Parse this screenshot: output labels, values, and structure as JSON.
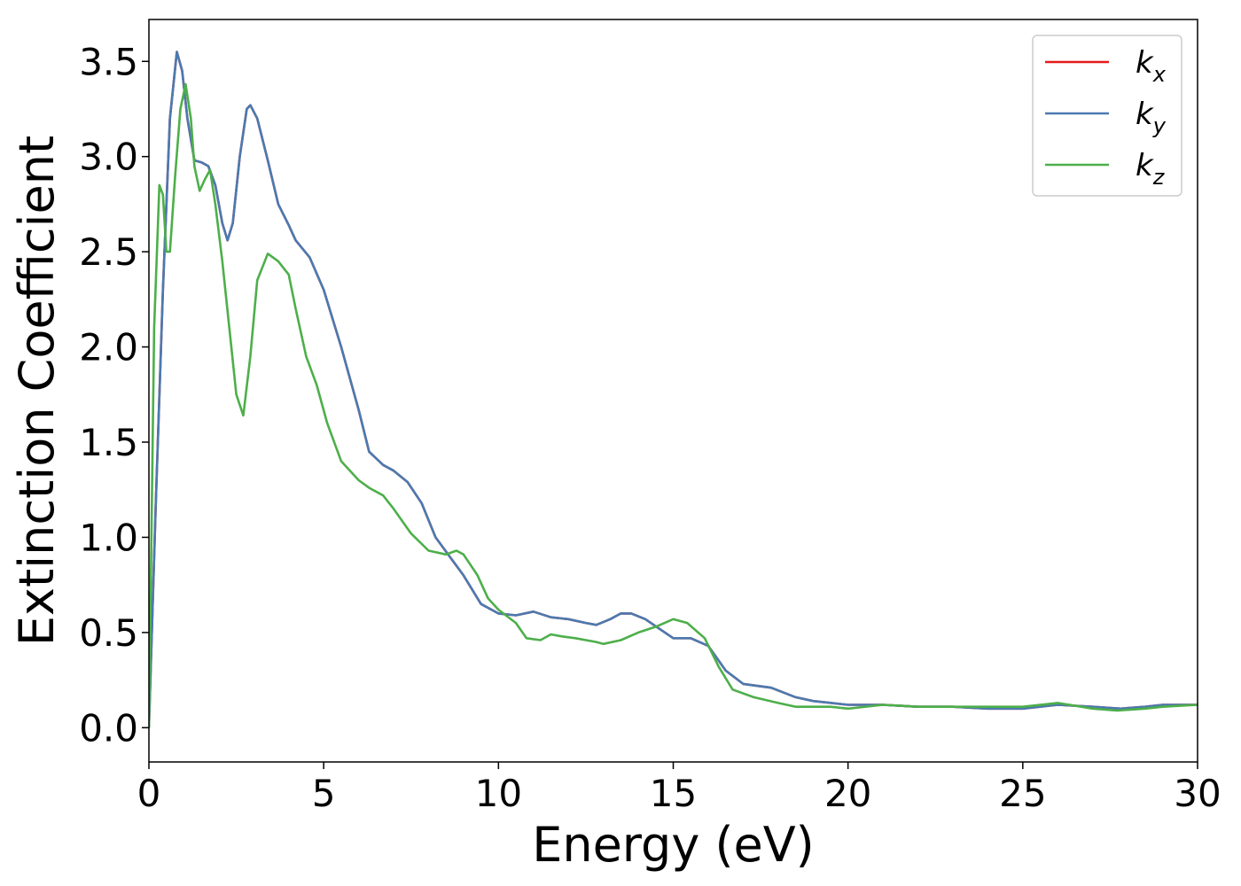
{
  "chart_data": {
    "type": "line",
    "title": "",
    "xlabel": "Energy (eV)",
    "ylabel": "Extinction Coefficient",
    "xlim": [
      0,
      30
    ],
    "ylim": [
      -0.18,
      3.72
    ],
    "xticks": [
      0,
      5,
      10,
      15,
      20,
      25,
      30
    ],
    "xtick_labels": [
      "0",
      "5",
      "10",
      "15",
      "20",
      "25",
      "30"
    ],
    "yticks": [
      0.0,
      0.5,
      1.0,
      1.5,
      2.0,
      2.5,
      3.0,
      3.5
    ],
    "ytick_labels": [
      "0.0",
      "0.5",
      "1.0",
      "1.5",
      "2.0",
      "2.5",
      "3.0",
      "3.5"
    ],
    "grid": false,
    "legend_position": "top-right",
    "series": [
      {
        "name": "k",
        "subscript": "x",
        "color": "#e41a1c",
        "points": [
          [
            0,
            0
          ],
          [
            0.2,
            1.2
          ],
          [
            0.4,
            2.3
          ],
          [
            0.6,
            3.2
          ],
          [
            0.8,
            3.55
          ],
          [
            0.95,
            3.45
          ],
          [
            1.1,
            3.2
          ],
          [
            1.3,
            2.98
          ],
          [
            1.5,
            2.97
          ],
          [
            1.7,
            2.95
          ],
          [
            1.9,
            2.85
          ],
          [
            2.1,
            2.65
          ],
          [
            2.25,
            2.56
          ],
          [
            2.4,
            2.65
          ],
          [
            2.6,
            3.0
          ],
          [
            2.8,
            3.25
          ],
          [
            2.9,
            3.27
          ],
          [
            3.1,
            3.2
          ],
          [
            3.4,
            2.98
          ],
          [
            3.7,
            2.75
          ],
          [
            4.0,
            2.64
          ],
          [
            4.2,
            2.56
          ],
          [
            4.6,
            2.47
          ],
          [
            5.0,
            2.3
          ],
          [
            5.5,
            2.0
          ],
          [
            6.0,
            1.67
          ],
          [
            6.3,
            1.45
          ],
          [
            6.7,
            1.38
          ],
          [
            7.0,
            1.35
          ],
          [
            7.4,
            1.29
          ],
          [
            7.8,
            1.18
          ],
          [
            8.2,
            1.0
          ],
          [
            8.6,
            0.9
          ],
          [
            9.0,
            0.8
          ],
          [
            9.5,
            0.65
          ],
          [
            10.0,
            0.6
          ],
          [
            10.5,
            0.59
          ],
          [
            11.0,
            0.61
          ],
          [
            11.5,
            0.58
          ],
          [
            12.0,
            0.57
          ],
          [
            12.5,
            0.55
          ],
          [
            12.8,
            0.54
          ],
          [
            13.2,
            0.57
          ],
          [
            13.5,
            0.6
          ],
          [
            13.8,
            0.6
          ],
          [
            14.2,
            0.57
          ],
          [
            14.6,
            0.52
          ],
          [
            15.0,
            0.47
          ],
          [
            15.5,
            0.47
          ],
          [
            16.0,
            0.43
          ],
          [
            16.5,
            0.3
          ],
          [
            17.0,
            0.23
          ],
          [
            17.8,
            0.21
          ],
          [
            18.5,
            0.16
          ],
          [
            19.0,
            0.14
          ],
          [
            20.0,
            0.12
          ],
          [
            21.0,
            0.12
          ],
          [
            22.0,
            0.11
          ],
          [
            23.0,
            0.11
          ],
          [
            24.0,
            0.1
          ],
          [
            25.0,
            0.1
          ],
          [
            26.0,
            0.12
          ],
          [
            27.0,
            0.11
          ],
          [
            27.8,
            0.1
          ],
          [
            28.5,
            0.11
          ],
          [
            29.0,
            0.12
          ],
          [
            30.0,
            0.12
          ]
        ]
      },
      {
        "name": "k",
        "subscript": "y",
        "color": "#4a7ab0",
        "points": [
          [
            0,
            0
          ],
          [
            0.2,
            1.2
          ],
          [
            0.4,
            2.3
          ],
          [
            0.6,
            3.2
          ],
          [
            0.8,
            3.55
          ],
          [
            0.95,
            3.45
          ],
          [
            1.1,
            3.2
          ],
          [
            1.3,
            2.98
          ],
          [
            1.5,
            2.97
          ],
          [
            1.7,
            2.95
          ],
          [
            1.9,
            2.85
          ],
          [
            2.1,
            2.65
          ],
          [
            2.25,
            2.56
          ],
          [
            2.4,
            2.65
          ],
          [
            2.6,
            3.0
          ],
          [
            2.8,
            3.25
          ],
          [
            2.9,
            3.27
          ],
          [
            3.1,
            3.2
          ],
          [
            3.4,
            2.98
          ],
          [
            3.7,
            2.75
          ],
          [
            4.0,
            2.64
          ],
          [
            4.2,
            2.56
          ],
          [
            4.6,
            2.47
          ],
          [
            5.0,
            2.3
          ],
          [
            5.5,
            2.0
          ],
          [
            6.0,
            1.67
          ],
          [
            6.3,
            1.45
          ],
          [
            6.7,
            1.38
          ],
          [
            7.0,
            1.35
          ],
          [
            7.4,
            1.29
          ],
          [
            7.8,
            1.18
          ],
          [
            8.2,
            1.0
          ],
          [
            8.6,
            0.9
          ],
          [
            9.0,
            0.8
          ],
          [
            9.5,
            0.65
          ],
          [
            10.0,
            0.6
          ],
          [
            10.5,
            0.59
          ],
          [
            11.0,
            0.61
          ],
          [
            11.5,
            0.58
          ],
          [
            12.0,
            0.57
          ],
          [
            12.5,
            0.55
          ],
          [
            12.8,
            0.54
          ],
          [
            13.2,
            0.57
          ],
          [
            13.5,
            0.6
          ],
          [
            13.8,
            0.6
          ],
          [
            14.2,
            0.57
          ],
          [
            14.6,
            0.52
          ],
          [
            15.0,
            0.47
          ],
          [
            15.5,
            0.47
          ],
          [
            16.0,
            0.43
          ],
          [
            16.5,
            0.3
          ],
          [
            17.0,
            0.23
          ],
          [
            17.8,
            0.21
          ],
          [
            18.5,
            0.16
          ],
          [
            19.0,
            0.14
          ],
          [
            20.0,
            0.12
          ],
          [
            21.0,
            0.12
          ],
          [
            22.0,
            0.11
          ],
          [
            23.0,
            0.11
          ],
          [
            24.0,
            0.1
          ],
          [
            25.0,
            0.1
          ],
          [
            26.0,
            0.12
          ],
          [
            27.0,
            0.11
          ],
          [
            27.8,
            0.1
          ],
          [
            28.5,
            0.11
          ],
          [
            29.0,
            0.12
          ],
          [
            30.0,
            0.12
          ]
        ]
      },
      {
        "name": "k",
        "subscript": "z",
        "color": "#4daf4a",
        "points": [
          [
            0,
            0
          ],
          [
            0.15,
            2.1
          ],
          [
            0.3,
            2.85
          ],
          [
            0.4,
            2.8
          ],
          [
            0.5,
            2.5
          ],
          [
            0.6,
            2.5
          ],
          [
            0.75,
            2.9
          ],
          [
            0.9,
            3.25
          ],
          [
            1.05,
            3.38
          ],
          [
            1.2,
            3.2
          ],
          [
            1.3,
            2.95
          ],
          [
            1.45,
            2.82
          ],
          [
            1.6,
            2.88
          ],
          [
            1.75,
            2.93
          ],
          [
            1.9,
            2.75
          ],
          [
            2.1,
            2.45
          ],
          [
            2.3,
            2.1
          ],
          [
            2.5,
            1.75
          ],
          [
            2.7,
            1.64
          ],
          [
            2.9,
            1.95
          ],
          [
            3.1,
            2.35
          ],
          [
            3.4,
            2.49
          ],
          [
            3.7,
            2.45
          ],
          [
            4.0,
            2.38
          ],
          [
            4.2,
            2.2
          ],
          [
            4.5,
            1.95
          ],
          [
            4.8,
            1.8
          ],
          [
            5.1,
            1.6
          ],
          [
            5.5,
            1.4
          ],
          [
            6.0,
            1.3
          ],
          [
            6.3,
            1.26
          ],
          [
            6.7,
            1.22
          ],
          [
            7.0,
            1.15
          ],
          [
            7.5,
            1.02
          ],
          [
            8.0,
            0.93
          ],
          [
            8.5,
            0.91
          ],
          [
            8.8,
            0.93
          ],
          [
            9.0,
            0.91
          ],
          [
            9.4,
            0.8
          ],
          [
            9.7,
            0.68
          ],
          [
            10.0,
            0.62
          ],
          [
            10.5,
            0.55
          ],
          [
            10.8,
            0.47
          ],
          [
            11.2,
            0.46
          ],
          [
            11.5,
            0.49
          ],
          [
            11.8,
            0.48
          ],
          [
            12.2,
            0.47
          ],
          [
            12.8,
            0.45
          ],
          [
            13.0,
            0.44
          ],
          [
            13.5,
            0.46
          ],
          [
            14.0,
            0.5
          ],
          [
            14.5,
            0.53
          ],
          [
            15.0,
            0.57
          ],
          [
            15.4,
            0.55
          ],
          [
            15.9,
            0.47
          ],
          [
            16.3,
            0.32
          ],
          [
            16.7,
            0.2
          ],
          [
            17.3,
            0.16
          ],
          [
            18.0,
            0.13
          ],
          [
            18.5,
            0.11
          ],
          [
            19.5,
            0.11
          ],
          [
            20.0,
            0.1
          ],
          [
            21.0,
            0.12
          ],
          [
            22.0,
            0.11
          ],
          [
            23.0,
            0.11
          ],
          [
            24.0,
            0.11
          ],
          [
            25.0,
            0.11
          ],
          [
            26.0,
            0.13
          ],
          [
            27.0,
            0.1
          ],
          [
            27.7,
            0.09
          ],
          [
            28.5,
            0.1
          ],
          [
            29.0,
            0.11
          ],
          [
            30.0,
            0.12
          ]
        ]
      }
    ]
  }
}
